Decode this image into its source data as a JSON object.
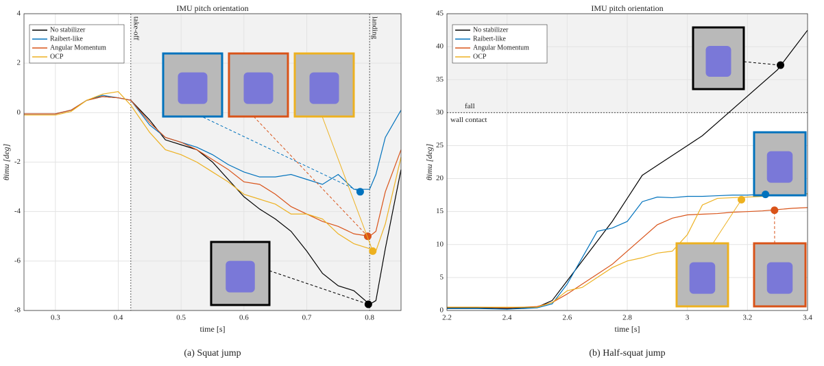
{
  "chart_data": [
    {
      "type": "line",
      "title": "IMU pitch orientation",
      "xlabel": "time [s]",
      "ylabel": "θimu [deg]",
      "caption": "(a) Squat jump",
      "x": [
        0.25,
        0.275,
        0.3,
        0.325,
        0.35,
        0.375,
        0.4,
        0.42,
        0.45,
        0.475,
        0.5,
        0.525,
        0.55,
        0.575,
        0.6,
        0.625,
        0.65,
        0.675,
        0.7,
        0.725,
        0.75,
        0.775,
        0.8,
        0.81,
        0.825,
        0.85
      ],
      "series": [
        {
          "name": "No stabilizer",
          "color": "#000000",
          "values": [
            -0.05,
            -0.05,
            -0.05,
            0.1,
            0.5,
            0.65,
            0.6,
            0.5,
            -0.3,
            -1.1,
            -1.3,
            -1.5,
            -2.0,
            -2.7,
            -3.4,
            -3.9,
            -4.3,
            -4.8,
            -5.6,
            -6.5,
            -7.0,
            -7.2,
            -7.75,
            -7.6,
            -5.5,
            -2.3
          ],
          "marker": {
            "x": 0.798,
            "y": -7.75
          }
        },
        {
          "name": "Raibert-like",
          "color": "#0072bd",
          "values": [
            -0.05,
            -0.05,
            -0.05,
            0.1,
            0.5,
            0.7,
            0.6,
            0.5,
            -0.5,
            -1.0,
            -1.2,
            -1.4,
            -1.7,
            -2.1,
            -2.4,
            -2.6,
            -2.6,
            -2.5,
            -2.7,
            -2.9,
            -2.5,
            -3.1,
            -3.1,
            -2.5,
            -1.0,
            0.1
          ],
          "marker": {
            "x": 0.785,
            "y": -3.2
          }
        },
        {
          "name": "Angular Momentum",
          "color": "#d95319",
          "values": [
            -0.05,
            -0.05,
            -0.05,
            0.1,
            0.5,
            0.65,
            0.6,
            0.5,
            -0.4,
            -1.0,
            -1.2,
            -1.5,
            -1.9,
            -2.3,
            -2.8,
            -2.9,
            -3.3,
            -3.8,
            -4.1,
            -4.4,
            -4.6,
            -4.9,
            -5.0,
            -4.8,
            -3.2,
            -1.5
          ],
          "marker": {
            "x": 0.797,
            "y": -5.0
          }
        },
        {
          "name": "OCP",
          "color": "#edb120",
          "values": [
            -0.1,
            -0.1,
            -0.1,
            0.05,
            0.5,
            0.75,
            0.85,
            0.3,
            -0.8,
            -1.5,
            -1.7,
            -2.0,
            -2.4,
            -2.8,
            -3.3,
            -3.5,
            -3.7,
            -4.1,
            -4.1,
            -4.3,
            -4.9,
            -5.3,
            -5.5,
            -5.6,
            -4.5,
            -1.8
          ],
          "marker": {
            "x": 0.805,
            "y": -5.6
          }
        }
      ],
      "xlim": [
        0.25,
        0.85
      ],
      "xticks": [
        0.3,
        0.4,
        0.5,
        0.6,
        0.7,
        0.8
      ],
      "ylim": [
        -8,
        4
      ],
      "yticks": [
        -8,
        -6,
        -4,
        -2,
        0,
        2,
        4
      ],
      "grid": true,
      "legend": "upper left",
      "annotations": [
        {
          "type": "vline",
          "x": 0.42,
          "label": "take-off",
          "shaded": true
        },
        {
          "type": "vline",
          "x": 0.8,
          "label": "landing"
        }
      ]
    },
    {
      "type": "line",
      "title": "IMU pitch orientation",
      "xlabel": "time [s]",
      "ylabel": "θimu [deg]",
      "caption": "(b) Half-squat jump",
      "x": [
        2.2,
        2.3,
        2.4,
        2.5,
        2.55,
        2.6,
        2.65,
        2.7,
        2.75,
        2.8,
        2.85,
        2.9,
        2.95,
        3.0,
        3.05,
        3.1,
        3.15,
        3.2,
        3.25,
        3.3,
        3.35,
        3.4
      ],
      "series": [
        {
          "name": "No stabilizer",
          "color": "#000000",
          "values": [
            0.4,
            0.4,
            0.3,
            0.5,
            1.5,
            4.5,
            7.5,
            10.5,
            13.5,
            17,
            20.5,
            22,
            23.5,
            25,
            26.5,
            28.5,
            30.5,
            32.5,
            34.5,
            36.5,
            39.5,
            42.5
          ],
          "marker": {
            "x": 3.31,
            "y": 37.2
          }
        },
        {
          "name": "Raibert-like",
          "color": "#0072bd",
          "values": [
            0.3,
            0.3,
            0.2,
            0.4,
            1.0,
            4,
            8,
            12,
            12.5,
            13.5,
            16.5,
            17.2,
            17.1,
            17.3,
            17.3,
            17.4,
            17.5,
            17.5,
            17.6,
            17.6,
            17.7,
            17.7
          ],
          "marker": {
            "x": 3.26,
            "y": 17.6
          }
        },
        {
          "name": "Angular Momentum",
          "color": "#d95319",
          "values": [
            0.5,
            0.5,
            0.4,
            0.6,
            1.2,
            2.5,
            4,
            5.5,
            7,
            9,
            11,
            13,
            14,
            14.5,
            14.6,
            14.7,
            14.9,
            15.0,
            15.1,
            15.3,
            15.5,
            15.6
          ],
          "marker": {
            "x": 3.29,
            "y": 15.2
          }
        },
        {
          "name": "OCP",
          "color": "#edb120",
          "values": [
            0.5,
            0.5,
            0.5,
            0.5,
            1.2,
            3,
            3.5,
            5,
            6.5,
            7.5,
            8,
            8.7,
            9,
            11.5,
            16,
            17,
            17.1,
            17.2,
            17.3,
            17.5,
            17.6,
            17.7
          ],
          "marker": {
            "x": 3.18,
            "y": 16.8
          }
        }
      ],
      "xlim": [
        2.2,
        3.4
      ],
      "xticks": [
        2.2,
        2.4,
        2.6,
        2.8,
        3,
        3.2,
        3.4
      ],
      "ylim": [
        0,
        45
      ],
      "yticks": [
        0,
        5,
        10,
        15,
        20,
        25,
        30,
        35,
        40,
        45
      ],
      "grid": true,
      "legend": "upper left",
      "annotations": [
        {
          "type": "hline",
          "y": 30,
          "labels": [
            "fall",
            "wall contact"
          ],
          "shaded": true
        }
      ]
    }
  ]
}
